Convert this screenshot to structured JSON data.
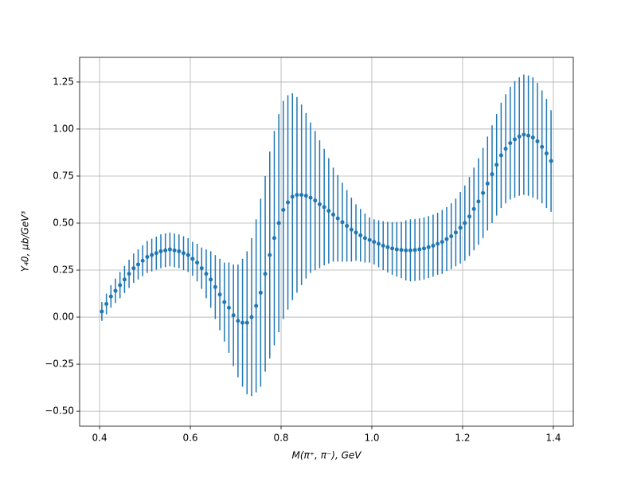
{
  "chart_data": {
    "type": "errorbar",
    "xlabel": "M(π⁺, π⁻), GeV",
    "ylabel": "Y₄0, μb/GeV³",
    "x": [
      0.405,
      0.415,
      0.425,
      0.435,
      0.445,
      0.455,
      0.465,
      0.475,
      0.485,
      0.495,
      0.505,
      0.515,
      0.525,
      0.535,
      0.545,
      0.555,
      0.565,
      0.575,
      0.585,
      0.595,
      0.605,
      0.615,
      0.625,
      0.635,
      0.645,
      0.655,
      0.665,
      0.675,
      0.685,
      0.695,
      0.705,
      0.715,
      0.725,
      0.735,
      0.745,
      0.755,
      0.765,
      0.775,
      0.785,
      0.795,
      0.805,
      0.815,
      0.825,
      0.835,
      0.845,
      0.855,
      0.865,
      0.875,
      0.885,
      0.895,
      0.905,
      0.915,
      0.925,
      0.935,
      0.945,
      0.955,
      0.965,
      0.975,
      0.985,
      0.995,
      1.005,
      1.015,
      1.025,
      1.035,
      1.045,
      1.055,
      1.065,
      1.075,
      1.085,
      1.095,
      1.105,
      1.115,
      1.125,
      1.135,
      1.145,
      1.155,
      1.165,
      1.175,
      1.185,
      1.195,
      1.205,
      1.215,
      1.225,
      1.235,
      1.245,
      1.255,
      1.265,
      1.275,
      1.285,
      1.295,
      1.305,
      1.315,
      1.325,
      1.335,
      1.345,
      1.355,
      1.365,
      1.375,
      1.385,
      1.395
    ],
    "series": [
      {
        "color": "#1f77b4",
        "values": [
          0.03,
          0.07,
          0.11,
          0.14,
          0.17,
          0.2,
          0.23,
          0.26,
          0.28,
          0.3,
          0.32,
          0.33,
          0.34,
          0.35,
          0.355,
          0.36,
          0.355,
          0.35,
          0.34,
          0.33,
          0.31,
          0.29,
          0.26,
          0.23,
          0.2,
          0.16,
          0.12,
          0.08,
          0.05,
          0.01,
          -0.02,
          -0.03,
          -0.03,
          0.0,
          0.06,
          0.13,
          0.23,
          0.33,
          0.42,
          0.5,
          0.57,
          0.61,
          0.64,
          0.65,
          0.65,
          0.645,
          0.635,
          0.62,
          0.6,
          0.585,
          0.565,
          0.545,
          0.525,
          0.505,
          0.485,
          0.465,
          0.45,
          0.435,
          0.42,
          0.41,
          0.4,
          0.39,
          0.38,
          0.372,
          0.365,
          0.36,
          0.357,
          0.355,
          0.355,
          0.357,
          0.36,
          0.365,
          0.372,
          0.38,
          0.39,
          0.4,
          0.415,
          0.43,
          0.45,
          0.475,
          0.5,
          0.535,
          0.575,
          0.615,
          0.66,
          0.71,
          0.76,
          0.81,
          0.86,
          0.895,
          0.925,
          0.945,
          0.96,
          0.97,
          0.965,
          0.955,
          0.935,
          0.905,
          0.87,
          0.83
        ],
        "errors": [
          0.05,
          0.055,
          0.06,
          0.065,
          0.07,
          0.072,
          0.075,
          0.078,
          0.08,
          0.082,
          0.085,
          0.087,
          0.088,
          0.09,
          0.09,
          0.09,
          0.09,
          0.09,
          0.09,
          0.09,
          0.09,
          0.1,
          0.11,
          0.13,
          0.15,
          0.17,
          0.19,
          0.21,
          0.24,
          0.27,
          0.3,
          0.34,
          0.38,
          0.42,
          0.46,
          0.5,
          0.52,
          0.55,
          0.57,
          0.58,
          0.58,
          0.57,
          0.55,
          0.52,
          0.48,
          0.44,
          0.4,
          0.37,
          0.34,
          0.31,
          0.28,
          0.25,
          0.23,
          0.21,
          0.19,
          0.17,
          0.15,
          0.14,
          0.13,
          0.12,
          0.12,
          0.125,
          0.13,
          0.135,
          0.14,
          0.145,
          0.15,
          0.16,
          0.165,
          0.165,
          0.165,
          0.165,
          0.165,
          0.165,
          0.165,
          0.17,
          0.17,
          0.175,
          0.18,
          0.19,
          0.2,
          0.21,
          0.22,
          0.23,
          0.24,
          0.25,
          0.26,
          0.27,
          0.28,
          0.29,
          0.3,
          0.31,
          0.315,
          0.32,
          0.32,
          0.32,
          0.31,
          0.3,
          0.29,
          0.27
        ]
      }
    ],
    "xlim": [
      0.356,
      1.444
    ],
    "ylim": [
      -0.58,
      1.381
    ],
    "xticks": [
      0.4,
      0.6,
      0.8,
      {
        "value": 1.0,
        "label": "1.0"
      },
      1.2,
      1.4
    ],
    "yticks": [
      {
        "value": -0.5,
        "label": "−0.50"
      },
      {
        "value": -0.25,
        "label": "−0.25"
      },
      {
        "value": 0,
        "label": "0.00"
      },
      {
        "value": 0.25,
        "label": "0.25"
      },
      {
        "value": 0.5,
        "label": "0.50"
      },
      {
        "value": 0.75,
        "label": "0.75"
      },
      {
        "value": 1.0,
        "label": "1.00"
      },
      {
        "value": 1.25,
        "label": "1.25"
      }
    ],
    "grid": true
  }
}
